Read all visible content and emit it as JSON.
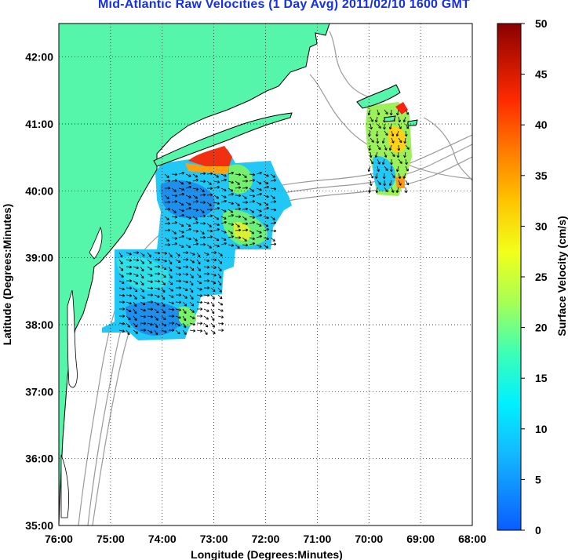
{
  "title": "Mid-Atlantic Raw Velocities (1 Day Avg) 2011/02/10 1600 GMT",
  "map": {
    "xlabel": "Longitude (Degrees:Minutes)",
    "ylabel": "Latitude (Degrees:Minutes)",
    "lon_ticks": [
      "76:00",
      "75:00",
      "74:00",
      "73:00",
      "72:00",
      "71:00",
      "70:00",
      "69:00",
      "68:00"
    ],
    "lat_ticks": [
      "42:00",
      "41:00",
      "40:00",
      "39:00",
      "38:00",
      "37:00",
      "36:00",
      "35:00"
    ],
    "lon_range": [
      -76,
      -68
    ],
    "lat_range": [
      35,
      42.5
    ],
    "grid": "dotted",
    "colors": {
      "land": "#55f5aa",
      "coast": "#000000",
      "bathymetry": "#9a9a9a",
      "grid": "#000000"
    }
  },
  "colorbar": {
    "label": "Surface Velocity (cm/s)",
    "ticks": [
      "50",
      "45",
      "40",
      "35",
      "30",
      "25",
      "20",
      "15",
      "10",
      "5",
      "0"
    ],
    "range": [
      0,
      50
    ],
    "colormap": "jet"
  }
}
